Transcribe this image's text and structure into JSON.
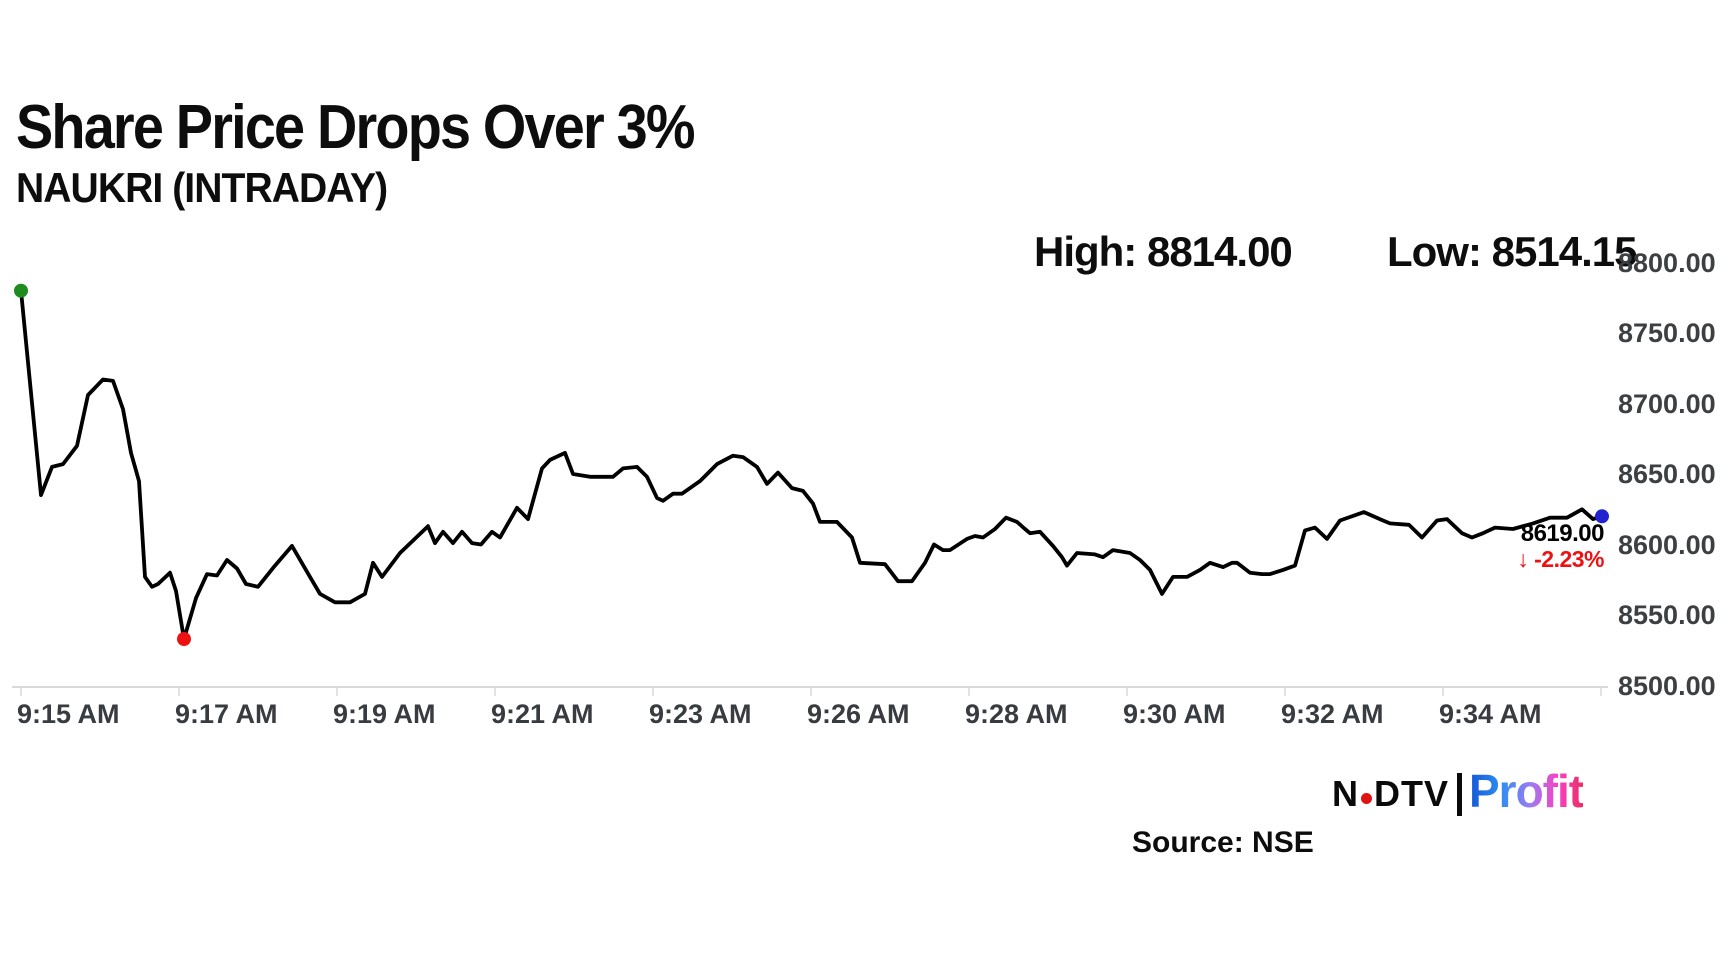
{
  "header": {
    "title": "Share Price Drops Over 3%",
    "subtitle": "NAUKRI (INTRADAY)"
  },
  "stats": {
    "high": "High: 8814.00",
    "low": "Low: 8514.15"
  },
  "last": {
    "price": "8619.00",
    "arrow": "↓",
    "change": "-2.23%"
  },
  "footer": {
    "source": "Source: NSE",
    "logo_n": "N",
    "logo_dtv": "DTV",
    "logo_profit": "Profit"
  },
  "colors": {
    "line": "#000000",
    "start_marker": "#1e8c1e",
    "low_marker": "#ee1111",
    "last_marker": "#2222cf",
    "axis": "#d9d9d9",
    "label_gray": "#3d4043",
    "change_red": "#ee1111",
    "profit_gradient": [
      "#1557d6",
      "#2e8df0",
      "#9d7bf3",
      "#f840c4",
      "#e92e63"
    ]
  },
  "chart_data": {
    "type": "line",
    "title": "Share Price Drops Over 3%",
    "series_name": "NAUKRI (INTRADAY)",
    "xlabel": "",
    "ylabel": "",
    "grid": false,
    "legend": "none",
    "ylim": [
      8500,
      8800
    ],
    "high": 8814.0,
    "low": 8514.15,
    "last_price": 8619.0,
    "change_pct": -2.23,
    "y_tick_labels": [
      "8800.00",
      "8750.00",
      "8700.00",
      "8650.00",
      "8600.00",
      "8550.00",
      "8500.00"
    ],
    "x_tick_labels": [
      "9:15 AM",
      "9:17 AM",
      "9:19 AM",
      "9:21 AM",
      "9:23 AM",
      "9:26 AM",
      "9:28 AM",
      "9:30 AM",
      "9:32 AM",
      "9:34 AM"
    ],
    "points": [
      [
        21,
        8780
      ],
      [
        41,
        8635
      ],
      [
        52,
        8655
      ],
      [
        63,
        8657
      ],
      [
        77,
        8670
      ],
      [
        88,
        8706
      ],
      [
        103,
        8717
      ],
      [
        113,
        8716
      ],
      [
        123,
        8696
      ],
      [
        131,
        8665
      ],
      [
        139,
        8645
      ],
      [
        145,
        8577
      ],
      [
        152,
        8570
      ],
      [
        158,
        8572
      ],
      [
        170,
        8580
      ],
      [
        176,
        8567
      ],
      [
        184,
        8533
      ],
      [
        196,
        8562
      ],
      [
        207,
        8579
      ],
      [
        217,
        8578
      ],
      [
        227,
        8589
      ],
      [
        237,
        8583
      ],
      [
        246,
        8572
      ],
      [
        258,
        8570
      ],
      [
        275,
        8585
      ],
      [
        292,
        8599
      ],
      [
        310,
        8577
      ],
      [
        320,
        8565
      ],
      [
        335,
        8559
      ],
      [
        350,
        8559
      ],
      [
        365,
        8565
      ],
      [
        373,
        8587
      ],
      [
        382,
        8577
      ],
      [
        400,
        8594
      ],
      [
        428,
        8613
      ],
      [
        435,
        8601
      ],
      [
        443,
        8609
      ],
      [
        453,
        8601
      ],
      [
        462,
        8609
      ],
      [
        472,
        8601
      ],
      [
        481,
        8600
      ],
      [
        492,
        8609
      ],
      [
        500,
        8605
      ],
      [
        517,
        8626
      ],
      [
        528,
        8618
      ],
      [
        542,
        8654
      ],
      [
        550,
        8660
      ],
      [
        565,
        8665
      ],
      [
        573,
        8650
      ],
      [
        590,
        8648
      ],
      [
        613,
        8648
      ],
      [
        623,
        8654
      ],
      [
        637,
        8655
      ],
      [
        647,
        8648
      ],
      [
        657,
        8633
      ],
      [
        663,
        8631
      ],
      [
        673,
        8636
      ],
      [
        682,
        8636
      ],
      [
        700,
        8645
      ],
      [
        717,
        8657
      ],
      [
        733,
        8663
      ],
      [
        743,
        8662
      ],
      [
        757,
        8655
      ],
      [
        767,
        8643
      ],
      [
        778,
        8651
      ],
      [
        792,
        8640
      ],
      [
        803,
        8638
      ],
      [
        813,
        8629
      ],
      [
        820,
        8616
      ],
      [
        837,
        8616
      ],
      [
        852,
        8605
      ],
      [
        860,
        8587
      ],
      [
        885,
        8586
      ],
      [
        898,
        8574
      ],
      [
        912,
        8574
      ],
      [
        925,
        8587
      ],
      [
        934,
        8600
      ],
      [
        943,
        8596
      ],
      [
        950,
        8596
      ],
      [
        967,
        8604
      ],
      [
        975,
        8606
      ],
      [
        983,
        8605
      ],
      [
        995,
        8611
      ],
      [
        1006,
        8619
      ],
      [
        1017,
        8616
      ],
      [
        1025,
        8611
      ],
      [
        1030,
        8608
      ],
      [
        1040,
        8609
      ],
      [
        1053,
        8599
      ],
      [
        1062,
        8591
      ],
      [
        1067,
        8585
      ],
      [
        1077,
        8594
      ],
      [
        1095,
        8593
      ],
      [
        1103,
        8591
      ],
      [
        1113,
        8596
      ],
      [
        1130,
        8594
      ],
      [
        1140,
        8589
      ],
      [
        1150,
        8582
      ],
      [
        1162,
        8565
      ],
      [
        1173,
        8577
      ],
      [
        1187,
        8577
      ],
      [
        1200,
        8582
      ],
      [
        1210,
        8587
      ],
      [
        1223,
        8584
      ],
      [
        1232,
        8587
      ],
      [
        1237,
        8587
      ],
      [
        1250,
        8580
      ],
      [
        1262,
        8579
      ],
      [
        1270,
        8579
      ],
      [
        1283,
        8582
      ],
      [
        1295,
        8585
      ],
      [
        1305,
        8610
      ],
      [
        1315,
        8612
      ],
      [
        1327,
        8604
      ],
      [
        1340,
        8617
      ],
      [
        1364,
        8623
      ],
      [
        1383,
        8617
      ],
      [
        1390,
        8615
      ],
      [
        1409,
        8614
      ],
      [
        1422,
        8605
      ],
      [
        1437,
        8617
      ],
      [
        1447,
        8618
      ],
      [
        1462,
        8608
      ],
      [
        1472,
        8605
      ],
      [
        1483,
        8608
      ],
      [
        1495,
        8612
      ],
      [
        1513,
        8611
      ],
      [
        1533,
        8615
      ],
      [
        1550,
        8619
      ],
      [
        1567,
        8619
      ],
      [
        1582,
        8625
      ],
      [
        1593,
        8618
      ],
      [
        1602,
        8620
      ]
    ]
  }
}
